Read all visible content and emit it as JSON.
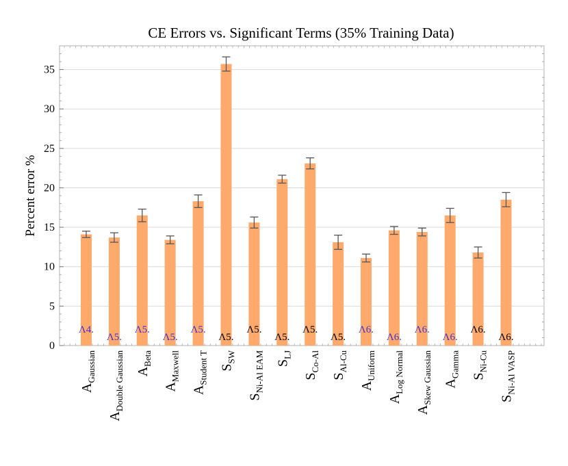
{
  "chart_data": {
    "type": "bar",
    "title": "CE Errors vs. Significant Terms (35% Training Data)",
    "xlabel": "",
    "ylabel": "Percent error %",
    "ylim": [
      0,
      38
    ],
    "yticks": [
      0,
      5,
      10,
      15,
      20,
      25,
      30,
      35
    ],
    "grid": true,
    "bar_color": "#fdaa6c",
    "errorbar_color": "#555555",
    "categories": [
      {
        "main": "A",
        "sub": "Gaussian"
      },
      {
        "main": "A",
        "sub": "Double Gaussian"
      },
      {
        "main": "A",
        "sub": "Beta"
      },
      {
        "main": "A",
        "sub": "Maxwell"
      },
      {
        "main": "A",
        "sub": "Student T"
      },
      {
        "main": "S",
        "sub": "SW"
      },
      {
        "main": "S",
        "sub": "Ni-Al EAM"
      },
      {
        "main": "S",
        "sub": "LJ"
      },
      {
        "main": "S",
        "sub": "Co-Al"
      },
      {
        "main": "S",
        "sub": "Al-Cu"
      },
      {
        "main": "A",
        "sub": "Uniform"
      },
      {
        "main": "A",
        "sub": "Log Normal"
      },
      {
        "main": "A",
        "sub": "Skew Gaussian"
      },
      {
        "main": "A",
        "sub": "Gamma"
      },
      {
        "main": "S",
        "sub": "Ni-Cu"
      },
      {
        "main": "S",
        "sub": "Ni-Al VASP"
      }
    ],
    "values": [
      14.1,
      13.7,
      16.5,
      13.4,
      18.3,
      35.7,
      15.6,
      21.1,
      23.1,
      13.1,
      11.1,
      14.6,
      14.4,
      16.5,
      11.8,
      18.5
    ],
    "errors": [
      0.4,
      0.6,
      0.8,
      0.5,
      0.8,
      0.9,
      0.7,
      0.5,
      0.7,
      0.9,
      0.5,
      0.5,
      0.5,
      0.9,
      0.7,
      0.9
    ],
    "annotations": [
      "Λ4.",
      "Λ5.",
      "Λ5.",
      "Λ5.",
      "Λ5.",
      "Λ5.",
      "Λ5.",
      "Λ5.",
      "Λ5.",
      "Λ5.",
      "Λ6.",
      "Λ6.",
      "Λ6.",
      "Λ6.",
      "Λ6.",
      "Λ6."
    ],
    "annotation_colors": [
      "#4433cc",
      "#4433cc",
      "#4433cc",
      "#4433cc",
      "#4433cc",
      "#000000",
      "#000000",
      "#000000",
      "#000000",
      "#000000",
      "#4433cc",
      "#4433cc",
      "#4433cc",
      "#4433cc",
      "#000000",
      "#000000"
    ]
  }
}
